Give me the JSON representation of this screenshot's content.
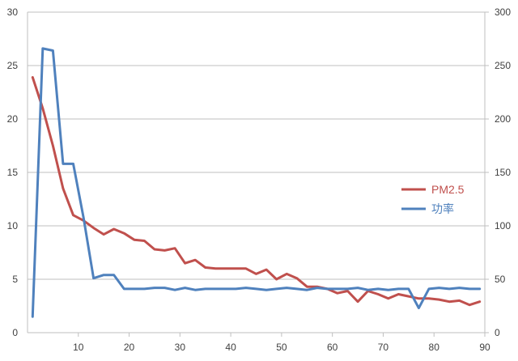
{
  "chart_data": {
    "type": "line",
    "title": "",
    "xlabel": "",
    "ylabel": "",
    "y2label": "",
    "xlim": [
      0,
      90
    ],
    "ylim": [
      0,
      30
    ],
    "y2lim": [
      0,
      300
    ],
    "xticks": [
      10,
      20,
      30,
      40,
      50,
      60,
      70,
      80,
      90
    ],
    "yticks": [
      0,
      5,
      10,
      15,
      20,
      25,
      30
    ],
    "y2ticks": [
      0,
      50,
      100,
      150,
      200,
      250,
      300
    ],
    "grid": true,
    "legend_position": "right",
    "series": [
      {
        "name": "PM2.5",
        "axis": "left",
        "color": "#C0504D",
        "x": [
          1,
          3,
          5,
          7,
          9,
          11,
          13,
          15,
          17,
          19,
          21,
          23,
          25,
          27,
          29,
          31,
          33,
          35,
          37,
          39,
          41,
          43,
          45,
          47,
          49,
          51,
          53,
          55,
          57,
          59,
          61,
          63,
          65,
          67,
          69,
          71,
          73,
          75,
          77,
          79,
          81,
          83,
          85,
          87,
          89
        ],
        "values": [
          23.9,
          21.0,
          17.5,
          13.5,
          11.0,
          10.5,
          9.8,
          9.2,
          9.7,
          9.3,
          8.7,
          8.6,
          7.8,
          7.7,
          7.9,
          6.5,
          6.8,
          6.1,
          6.0,
          6.0,
          6.0,
          6.0,
          5.5,
          5.9,
          5.0,
          5.5,
          5.1,
          4.3,
          4.3,
          4.1,
          3.7,
          3.9,
          2.9,
          3.9,
          3.6,
          3.2,
          3.6,
          3.4,
          3.2,
          3.2,
          3.1,
          2.9,
          3.0,
          2.6,
          2.9
        ]
      },
      {
        "name": "功率",
        "axis": "right",
        "color": "#4F81BD",
        "x": [
          1,
          3,
          5,
          7,
          9,
          11,
          13,
          15,
          17,
          19,
          21,
          23,
          25,
          27,
          29,
          31,
          33,
          35,
          37,
          39,
          41,
          43,
          45,
          47,
          49,
          51,
          53,
          55,
          57,
          59,
          61,
          63,
          65,
          67,
          69,
          71,
          73,
          75,
          77,
          79,
          81,
          83,
          85,
          87,
          89
        ],
        "values": [
          15,
          266,
          264,
          158,
          158,
          108,
          51,
          54,
          54,
          41,
          41,
          41,
          42,
          42,
          40,
          42,
          40,
          41,
          41,
          41,
          41,
          42,
          41,
          40,
          41,
          42,
          41,
          40,
          42,
          41,
          41,
          41,
          42,
          40,
          41,
          40,
          41,
          41,
          23,
          41,
          42,
          41,
          42,
          41,
          41
        ]
      }
    ]
  }
}
